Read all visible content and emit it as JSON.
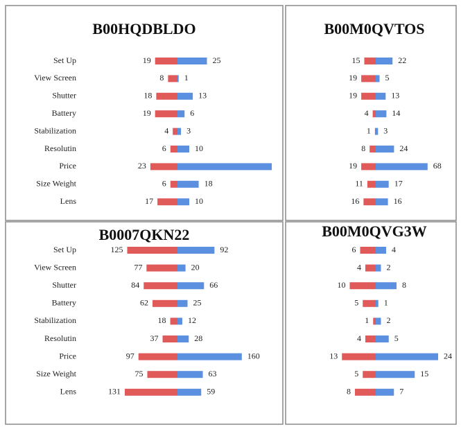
{
  "chart_data": [
    {
      "type": "diverging_bar",
      "title": "B00HQDBLDO",
      "categories": [
        "Set Up",
        "View Screen",
        "Shutter",
        "Battery",
        "Stabilization",
        "Resolutin",
        "Price",
        "Size Weight",
        "Lens"
      ],
      "series": [
        {
          "color": "#e05a5a",
          "values": [
            19,
            8,
            18,
            19,
            4,
            6,
            23,
            6,
            17
          ]
        },
        {
          "color": "#5b8fe0",
          "values": [
            25,
            1,
            13,
            6,
            3,
            10,
            80,
            18,
            10
          ],
          "value_labels": [
            "25",
            "1",
            "13",
            "6",
            "3",
            "10",
            null,
            "18",
            "10"
          ]
        }
      ]
    },
    {
      "type": "diverging_bar",
      "title": "B00M0QVTOS",
      "series": [
        {
          "color": "#e05a5a",
          "values": [
            15,
            19,
            19,
            4,
            1,
            8,
            19,
            11,
            16
          ]
        },
        {
          "color": "#5b8fe0",
          "values": [
            22,
            5,
            13,
            14,
            3,
            24,
            68,
            17,
            16
          ]
        }
      ]
    },
    {
      "type": "diverging_bar",
      "title": "B0007QKN22",
      "categories": [
        "Set Up",
        "View Screen",
        "Shutter",
        "Battery",
        "Stabilization",
        "Resolutin",
        "Price",
        "Size Weight",
        "Lens"
      ],
      "series": [
        {
          "color": "#e05a5a",
          "values": [
            125,
            77,
            84,
            62,
            18,
            37,
            97,
            75,
            131
          ]
        },
        {
          "color": "#5b8fe0",
          "values": [
            92,
            20,
            66,
            25,
            12,
            28,
            160,
            63,
            59
          ]
        }
      ]
    },
    {
      "type": "diverging_bar",
      "title": "B00M0QVG3W",
      "series": [
        {
          "color": "#e05a5a",
          "values": [
            6,
            4,
            10,
            5,
            1,
            4,
            13,
            5,
            8
          ]
        },
        {
          "color": "#5b8fe0",
          "values": [
            4,
            2,
            8,
            1,
            2,
            5,
            24,
            15,
            7
          ]
        }
      ]
    }
  ]
}
